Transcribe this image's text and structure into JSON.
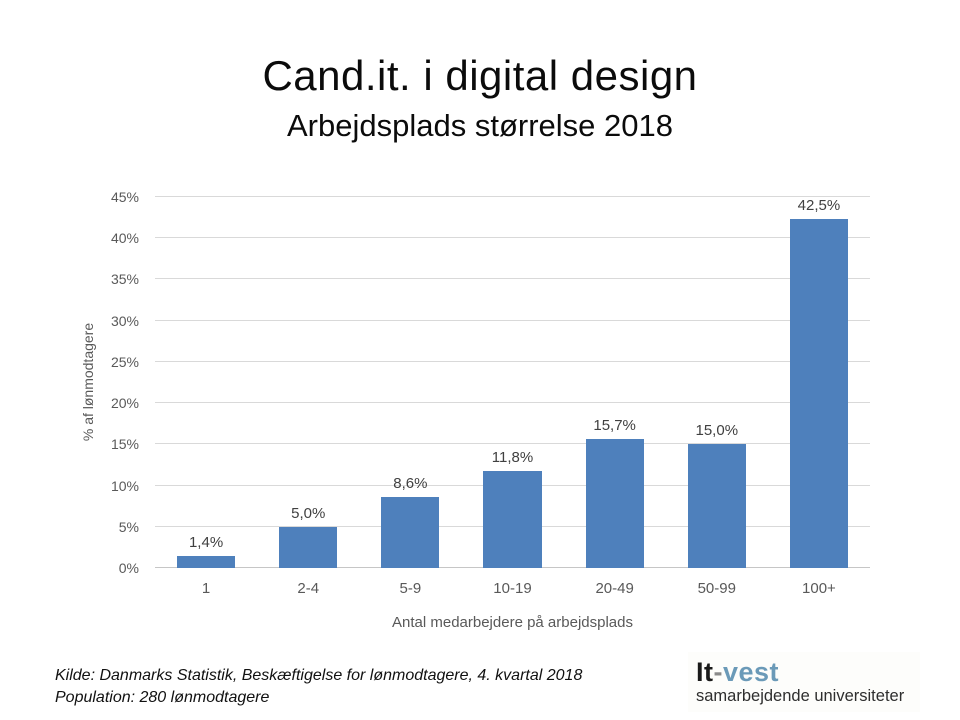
{
  "slide": {
    "title": "Cand.it. i digital design",
    "subtitle": "Arbejdsplads størrelse 2018"
  },
  "chart_data": {
    "type": "bar",
    "title": "Cand.it. i digital design — Arbejdsplads størrelse 2018",
    "categories": [
      "1",
      "2-4",
      "5-9",
      "10-19",
      "20-49",
      "50-99",
      "100+"
    ],
    "values": [
      1.4,
      5.0,
      8.6,
      11.8,
      15.7,
      15.0,
      42.5
    ],
    "data_labels": [
      "1,4%",
      "5,0%",
      "8,6%",
      "11,8%",
      "15,7%",
      "15,0%",
      "42,5%"
    ],
    "xlabel": "Antal medarbejdere på arbejdsplads",
    "ylabel": "% af lønmodtagere",
    "ylim": [
      0,
      45
    ],
    "yticks": [
      0,
      5,
      10,
      15,
      20,
      25,
      30,
      35,
      40,
      45
    ],
    "ytick_labels": [
      "0%",
      "5%",
      "10%",
      "15%",
      "20%",
      "25%",
      "30%",
      "35%",
      "40%",
      "45%"
    ],
    "grid": true,
    "legend": false,
    "bar_color": "#4e80bc",
    "gridline_color": "#d9d9d9",
    "tick_label_color": "#595959",
    "data_label_color": "#404040"
  },
  "footer": {
    "source_line1": "Kilde: Danmarks Statistik, Beskæftigelse for lønmodtagere, 4. kvartal 2018",
    "source_line2": "Population: 280 lønmodtagere"
  },
  "logo": {
    "part1": "It",
    "part2": "-",
    "part3": "vest",
    "tagline": "samarbejdende universiteter",
    "part1_color": "#1a1a1a",
    "part2_color": "#8a8a8a",
    "part3_color": "#6b9ab8"
  }
}
